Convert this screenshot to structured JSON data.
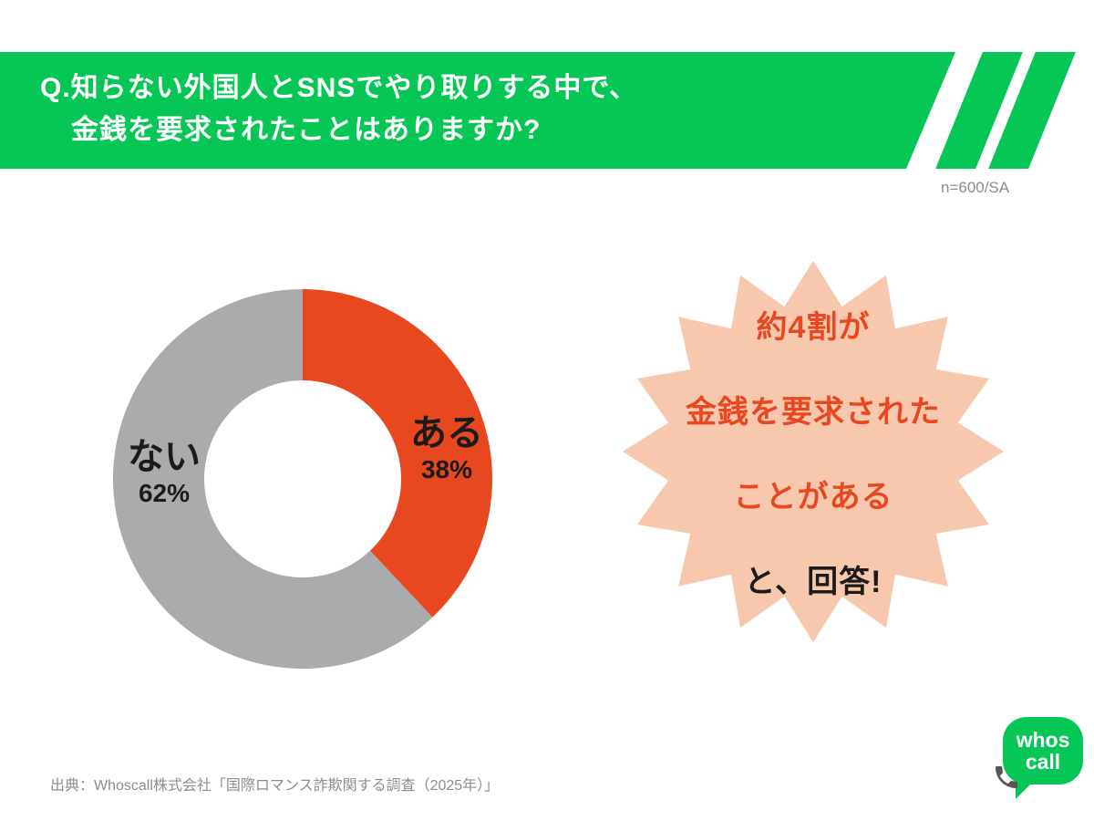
{
  "theme": {
    "green": "#06c755",
    "black": "#1b1b1b",
    "note_gray": "#8d8d8d"
  },
  "banner": {
    "question_line1": "Q.知らない外国人とSNSでやり取りする中で、",
    "question_line2": "金銭を要求されたことはありますか?"
  },
  "sample_note": "n=600/SA",
  "chart_data": {
    "type": "pie",
    "donut": true,
    "categories": [
      "ある",
      "ない"
    ],
    "values": [
      38,
      62
    ],
    "unit": "%",
    "colors": [
      "#e8481f",
      "#ababab"
    ],
    "slice_labels": [
      {
        "name": "ある",
        "value": "38%"
      },
      {
        "name": "ない",
        "value": "62%"
      }
    ],
    "start_angle_deg": 0,
    "direction": "clockwise",
    "legend_position": "none"
  },
  "callout": {
    "red_lines": [
      "約4割が",
      "金銭を要求された",
      "ことがある"
    ],
    "black_line": "と、回答!",
    "burst_color": "#f8c8ae",
    "text_color": "#e8481f"
  },
  "footer": {
    "source": "出典：Whoscall株式会社「国際ロマンス詐欺関する調査（2025年）」"
  },
  "logo": {
    "word_top": "whos",
    "word_bottom": "call",
    "phone_icon": "phone-receiver-icon",
    "phone_color": "#555555"
  }
}
